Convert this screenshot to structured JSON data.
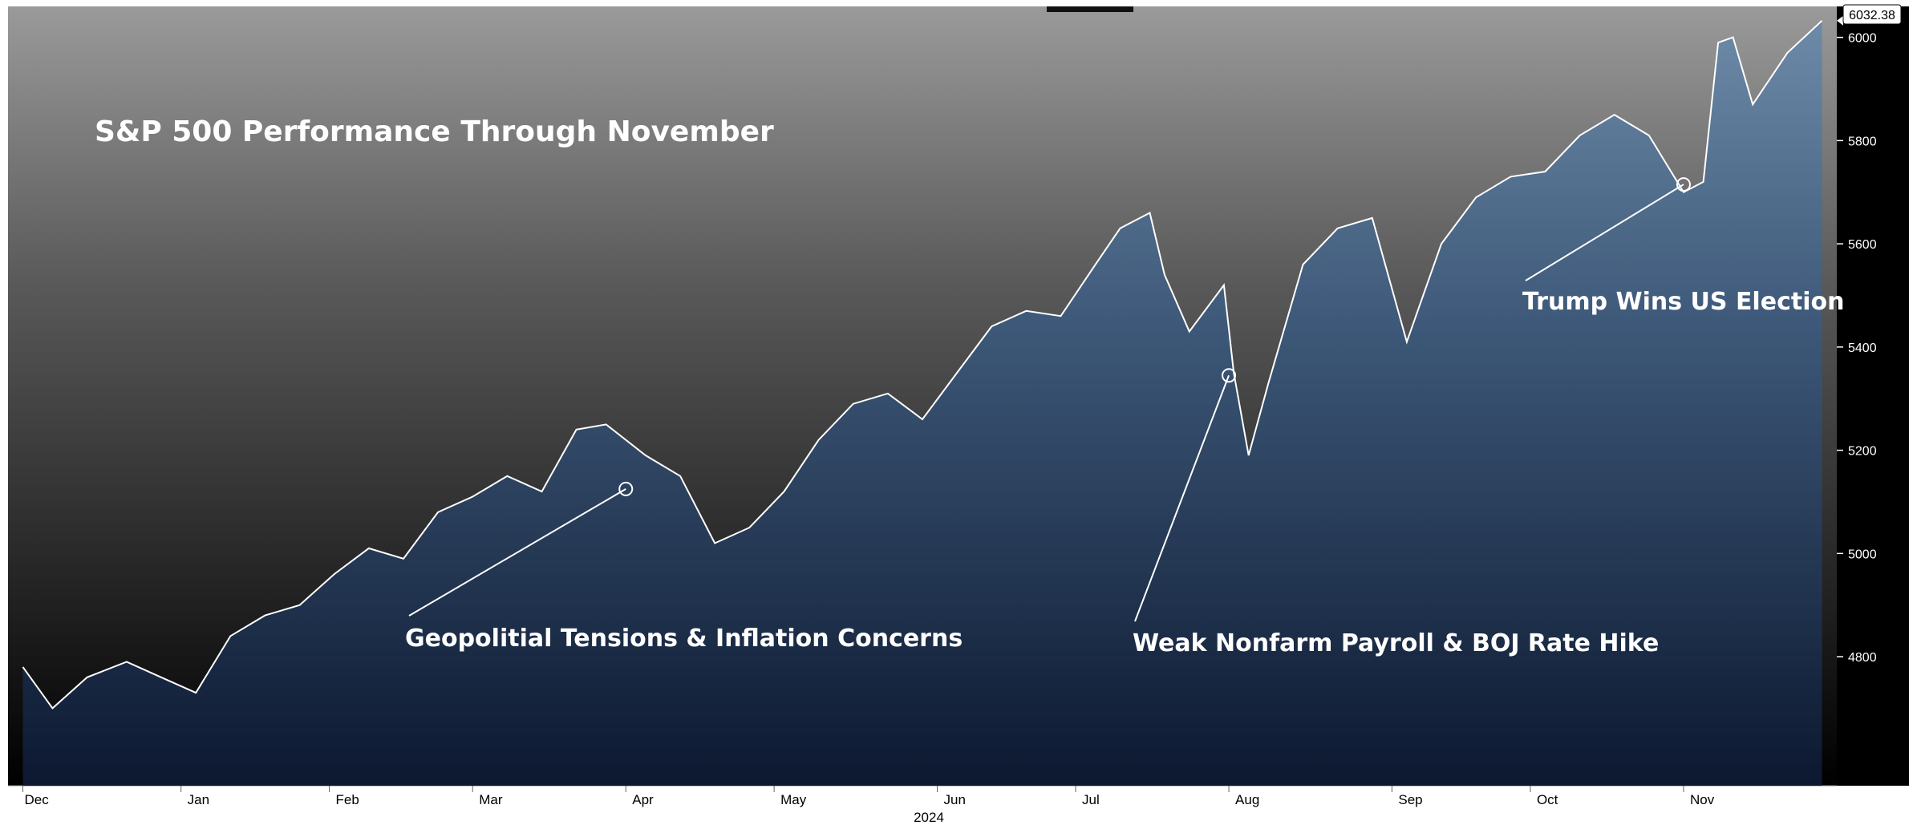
{
  "chart_data": {
    "type": "area",
    "title": "S&P 500 Performance Through November",
    "year_label": "2024",
    "last_value_label": "6032.38",
    "x_tick_labels": [
      "Dec",
      "Jan",
      "Feb",
      "Mar",
      "Apr",
      "May",
      "Jun",
      "Jul",
      "Aug",
      "Sep",
      "Oct",
      "Nov"
    ],
    "y_ticks": [
      4800,
      5000,
      5200,
      5400,
      5600,
      5800,
      6000
    ],
    "ylim": [
      4550,
      6060
    ],
    "x": [
      "2023-12-01",
      "2023-12-07",
      "2023-12-14",
      "2023-12-22",
      "2023-12-29",
      "2024-01-05",
      "2024-01-12",
      "2024-01-19",
      "2024-01-26",
      "2024-02-02",
      "2024-02-09",
      "2024-02-16",
      "2024-02-23",
      "2024-03-01",
      "2024-03-08",
      "2024-03-15",
      "2024-03-22",
      "2024-03-28",
      "2024-04-05",
      "2024-04-12",
      "2024-04-19",
      "2024-04-26",
      "2024-05-03",
      "2024-05-10",
      "2024-05-17",
      "2024-05-24",
      "2024-05-31",
      "2024-06-07",
      "2024-06-14",
      "2024-06-21",
      "2024-06-28",
      "2024-07-05",
      "2024-07-10",
      "2024-07-16",
      "2024-07-19",
      "2024-07-24",
      "2024-07-31",
      "2024-08-02",
      "2024-08-05",
      "2024-08-09",
      "2024-08-16",
      "2024-08-23",
      "2024-08-30",
      "2024-09-06",
      "2024-09-13",
      "2024-09-20",
      "2024-09-27",
      "2024-10-04",
      "2024-10-11",
      "2024-10-18",
      "2024-10-25",
      "2024-11-01",
      "2024-11-05",
      "2024-11-08",
      "2024-11-11",
      "2024-11-15",
      "2024-11-22",
      "2024-11-29"
    ],
    "values": [
      4780,
      4700,
      4760,
      4790,
      4760,
      4730,
      4840,
      4880,
      4900,
      4960,
      5010,
      4990,
      5080,
      5110,
      5150,
      5120,
      5240,
      5250,
      5190,
      5150,
      5020,
      5050,
      5120,
      5220,
      5290,
      5310,
      5260,
      5350,
      5440,
      5470,
      5460,
      5560,
      5630,
      5660,
      5540,
      5430,
      5520,
      5350,
      5190,
      5330,
      5560,
      5630,
      5650,
      5410,
      5600,
      5690,
      5730,
      5740,
      5810,
      5850,
      5810,
      5700,
      5720,
      5990,
      6000,
      5870,
      5970,
      6032.38
    ],
    "annotations": [
      {
        "label": "Geopolitial Tensions & Inflation Concerns",
        "x": "2024-04-01",
        "y": 5125
      },
      {
        "label": "Weak Nonfarm Payroll & BOJ Rate Hike",
        "x": "2024-08-01",
        "y": 5345
      },
      {
        "label": "Trump Wins US Election",
        "x": "2024-11-01",
        "y": 5715
      }
    ],
    "grid": false,
    "colors": {
      "line": "#ffffff",
      "fill_top": "#5b7a9c",
      "fill_bottom": "#0e1b33",
      "bg_top": "#9a9a9a",
      "bg_bottom": "#000000"
    }
  }
}
